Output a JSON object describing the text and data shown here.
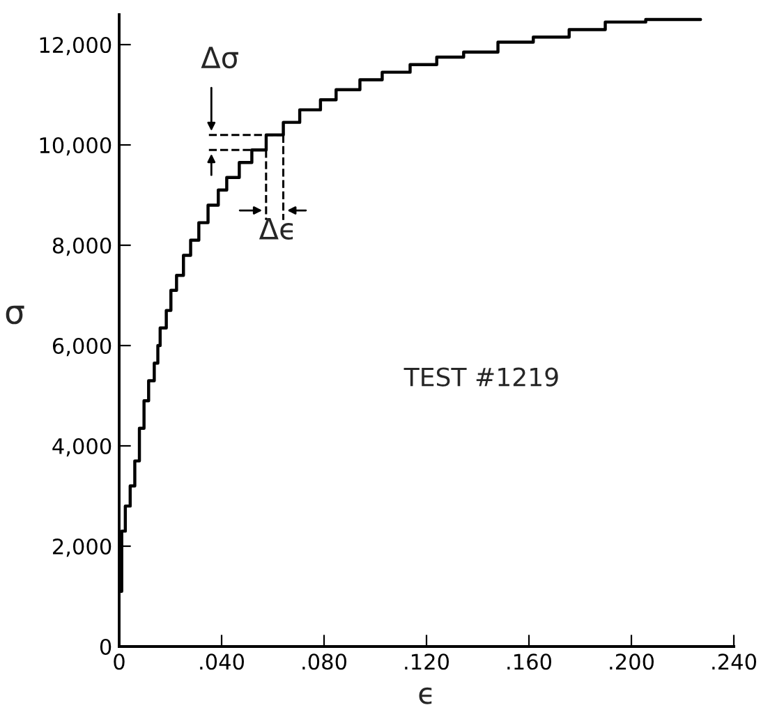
{
  "chart_data": {
    "type": "step",
    "xlabel": "ϵ",
    "ylabel": "σ",
    "x": [
      0.0003,
      0.001,
      0.0024,
      0.0043,
      0.0061,
      0.0079,
      0.0097,
      0.0115,
      0.0137,
      0.0151,
      0.016,
      0.0184,
      0.0202,
      0.0224,
      0.0251,
      0.0279,
      0.0311,
      0.0347,
      0.0387,
      0.042,
      0.0469,
      0.0518,
      0.0574,
      0.0641,
      0.0705,
      0.0786,
      0.0847,
      0.094,
      0.1027,
      0.1136,
      0.124,
      0.1345,
      0.1479,
      0.1617,
      0.1757,
      0.1898,
      0.2056,
      0.227
    ],
    "series": [
      {
        "color": "#000000",
        "values": [
          1100,
          2300,
          2800,
          3200,
          3700,
          4350,
          4900,
          5300,
          5650,
          6000,
          6350,
          6700,
          7100,
          7400,
          7800,
          8100,
          8450,
          8800,
          9100,
          9350,
          9650,
          9900,
          10200,
          10450,
          10700,
          10900,
          11100,
          11300,
          11450,
          11600,
          11750,
          11850,
          12050,
          12150,
          12300,
          12450,
          12500,
          12500
        ]
      }
    ],
    "xlim": [
      0,
      0.24
    ],
    "xticks": [
      {
        "value": 0,
        "label": "0"
      },
      {
        "value": 0.04,
        "label": ".040"
      },
      {
        "value": 0.08,
        "label": ".080"
      },
      {
        "value": 0.12,
        "label": ".120"
      },
      {
        "value": 0.16,
        "label": ".160"
      },
      {
        "value": 0.2,
        "label": ".200"
      },
      {
        "value": 0.24,
        "label": ".240"
      }
    ],
    "ylim": [
      0,
      12600
    ],
    "yticks": [
      0,
      {
        "value": 2000,
        "label": "2,000"
      },
      {
        "value": 4000,
        "label": "4,000"
      },
      {
        "value": 6000,
        "label": "6,000"
      },
      {
        "value": 8000,
        "label": "8,000"
      },
      {
        "value": 10000,
        "label": "10,000"
      },
      {
        "value": 12000,
        "label": "12,000"
      }
    ],
    "annotations": [
      "Δσ",
      {
        "text": "Δϵ",
        "x": 0.0574,
        "y": 9900
      },
      "TEST #1219"
    ],
    "grid": false,
    "marker": "none",
    "line_style": "solid"
  }
}
